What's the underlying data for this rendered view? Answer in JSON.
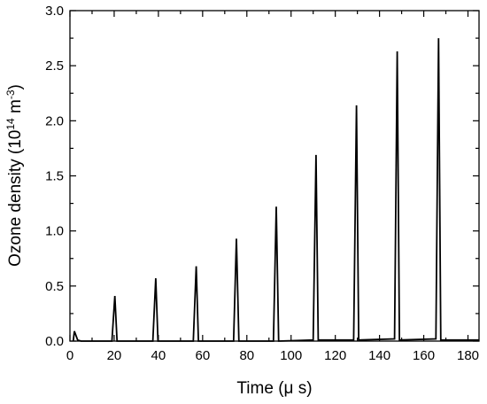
{
  "chart_data": {
    "type": "line",
    "xlabel_parts": [
      "Time (",
      "μ",
      " s)"
    ],
    "ylabel_parts": [
      "Ozone density (10",
      "14",
      " m",
      "-3",
      ")"
    ],
    "xlim": [
      0,
      185
    ],
    "ylim": [
      0,
      3.0
    ],
    "x_ticks": [
      0,
      20,
      40,
      60,
      80,
      100,
      120,
      140,
      160,
      180
    ],
    "x_tick_labels": [
      "0",
      "20",
      "40",
      "60",
      "80",
      "100",
      "120",
      "140",
      "160",
      "180"
    ],
    "y_ticks": [
      0.0,
      0.5,
      1.0,
      1.5,
      2.0,
      2.5,
      3.0
    ],
    "y_tick_labels": [
      "0.0",
      "0.5",
      "1.0",
      "1.5",
      "2.0",
      "2.5",
      "3.0"
    ],
    "x_minor_step": 10,
    "y_minor_step": 0.25,
    "grid": false,
    "line_color": "#000000",
    "series": [
      {
        "points": [
          [
            1.5,
            0.0
          ],
          [
            2.0,
            0.09
          ],
          [
            3.5,
            0.01
          ],
          [
            5.0,
            0.0
          ],
          [
            19.0,
            0.0
          ],
          [
            20.3,
            0.41
          ],
          [
            21.3,
            0.0
          ],
          [
            37.5,
            0.0
          ],
          [
            38.8,
            0.57
          ],
          [
            39.8,
            0.0
          ],
          [
            55.8,
            0.0
          ],
          [
            57.1,
            0.68
          ],
          [
            58.1,
            0.0
          ],
          [
            74.0,
            0.0
          ],
          [
            75.3,
            0.93
          ],
          [
            76.4,
            0.0
          ],
          [
            92.0,
            0.0
          ],
          [
            93.3,
            1.22
          ],
          [
            94.4,
            0.0
          ],
          [
            110.0,
            0.01
          ],
          [
            111.3,
            1.69
          ],
          [
            112.3,
            0.01
          ],
          [
            128.3,
            0.01
          ],
          [
            129.6,
            2.14
          ],
          [
            130.6,
            0.01
          ],
          [
            146.8,
            0.02
          ],
          [
            148.0,
            2.63
          ],
          [
            149.0,
            0.01
          ],
          [
            165.5,
            0.02
          ],
          [
            166.7,
            2.75
          ],
          [
            167.7,
            0.01
          ],
          [
            185.0,
            0.01
          ]
        ]
      }
    ]
  }
}
